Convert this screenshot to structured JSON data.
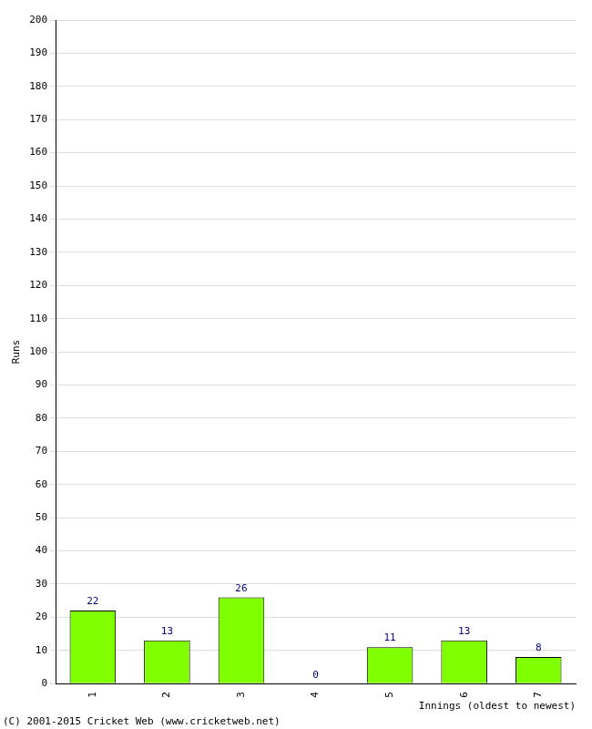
{
  "chart_data": {
    "type": "bar",
    "categories": [
      "1",
      "2",
      "3",
      "4",
      "5",
      "6",
      "7"
    ],
    "values": [
      22,
      13,
      26,
      0,
      11,
      13,
      8
    ],
    "color": "#80ff00",
    "x_label": "Innings (oldest to newest)",
    "y_label": "Runs",
    "annotations": [
      "(C) 2001-2015 Cricket Web (www.cricketweb.net)"
    ],
    "ylim": [
      0,
      200
    ],
    "yticks": [
      0,
      10,
      20,
      30,
      40,
      50,
      60,
      70,
      80,
      90,
      100,
      110,
      120,
      130,
      140,
      150,
      160,
      170,
      180,
      190,
      200
    ],
    "grid": true,
    "data_labels": true
  }
}
